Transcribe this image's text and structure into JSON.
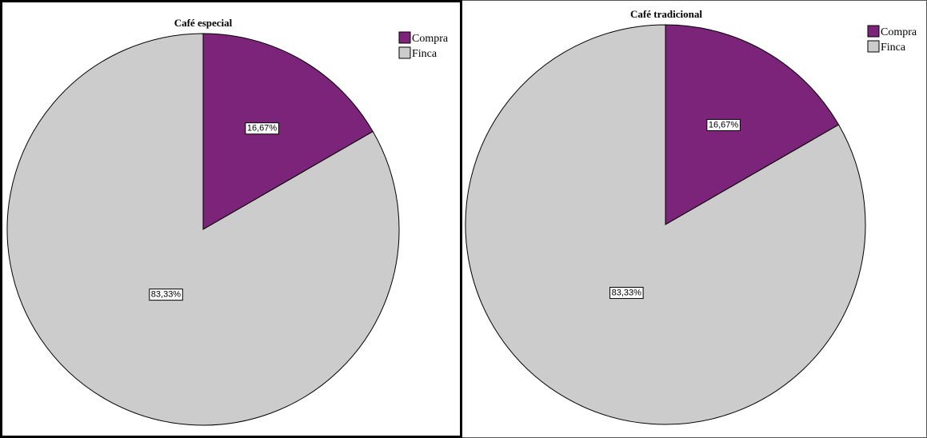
{
  "chart_data": [
    {
      "type": "pie",
      "title": "Café especial",
      "categories": [
        "Compra",
        "Finca"
      ],
      "values": [
        16.67,
        83.33
      ],
      "data_labels": [
        "16,67%",
        "83,33%"
      ],
      "colors": [
        "#7b2479",
        "#cccccc"
      ],
      "legend": "top-right",
      "start_angle": "12 o'clock, clockwise"
    },
    {
      "type": "pie",
      "title": "Café tradicional",
      "categories": [
        "Compra",
        "Finca"
      ],
      "values": [
        16.67,
        83.33
      ],
      "data_labels": [
        "16,67%",
        "83,33%"
      ],
      "colors": [
        "#7b2479",
        "#cccccc"
      ],
      "legend": "top-right",
      "start_angle": "12 o'clock, clockwise"
    }
  ]
}
